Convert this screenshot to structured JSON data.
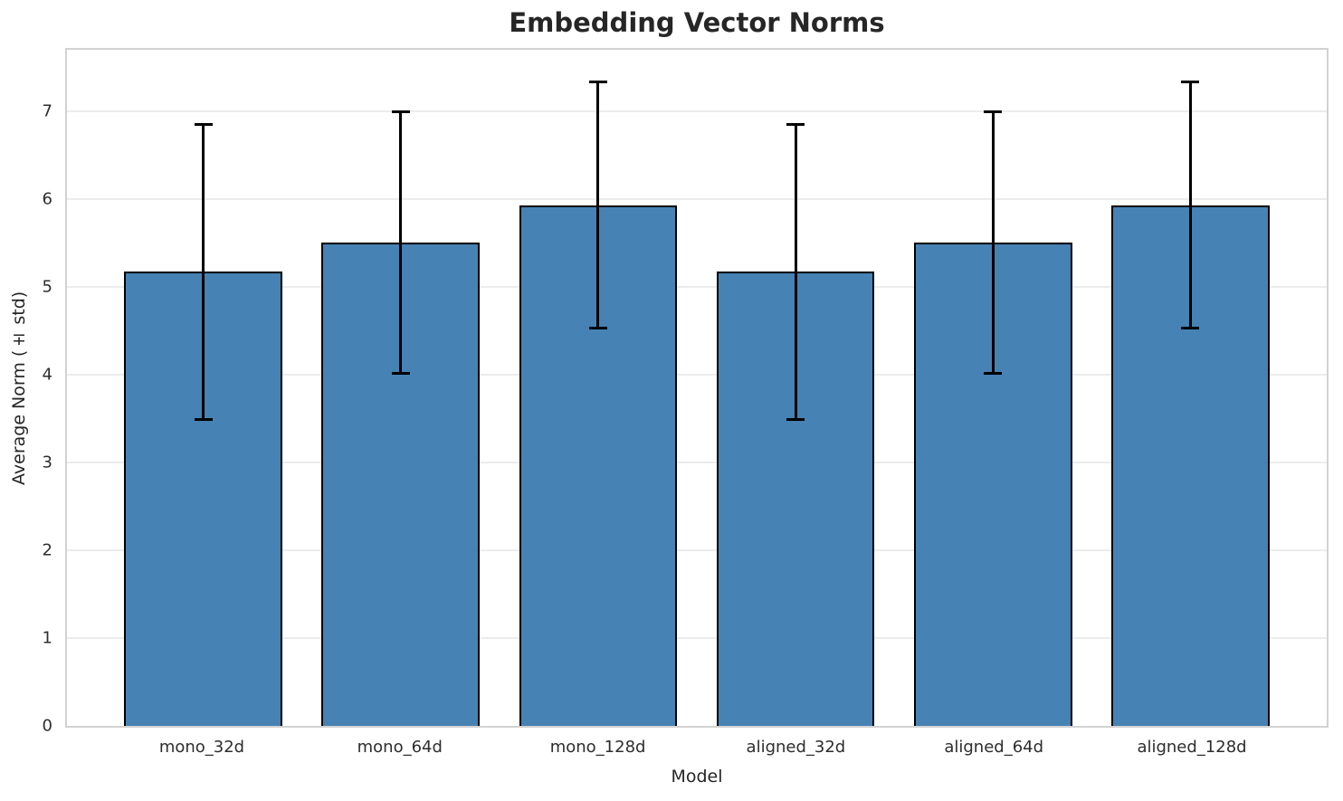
{
  "chart_data": {
    "type": "bar",
    "title": "Embedding Vector Norms",
    "xlabel": "Model",
    "ylabel": "Average Norm (± std)",
    "categories": [
      "mono_32d",
      "mono_64d",
      "mono_128d",
      "aligned_32d",
      "aligned_64d",
      "aligned_128d"
    ],
    "values": [
      5.17,
      5.5,
      5.93,
      5.17,
      5.5,
      5.93
    ],
    "errors": [
      1.68,
      1.49,
      1.4,
      1.68,
      1.49,
      1.4
    ],
    "yticks": [
      0,
      1,
      2,
      3,
      4,
      5,
      6,
      7
    ],
    "ylim": [
      0,
      7.7
    ],
    "xlim": [
      -0.69,
      5.69
    ],
    "bar_width": 0.8,
    "grid": true,
    "legend": "none",
    "bar_color": "#4682b4",
    "bar_edge_color": "#000000",
    "error_color": "#000000",
    "grid_color": "#ececec",
    "spine_color": "#d2d2d2",
    "text_color": "#262626"
  }
}
